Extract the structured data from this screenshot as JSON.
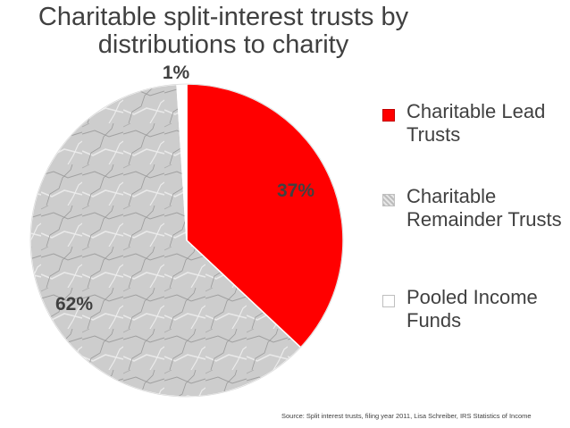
{
  "chart_data": {
    "type": "pie",
    "title": "Charitable split-interest trusts by distributions to charity",
    "categories": [
      "Charitable Lead Trusts",
      "Charitable Remainder Trusts",
      "Pooled Income Funds"
    ],
    "values": [
      37,
      62,
      1
    ],
    "data_labels": [
      "37%",
      "62%",
      "1%"
    ],
    "colors": [
      "#ff0000",
      "#c8c8c8",
      "#ffffff"
    ],
    "legend_placement": "right",
    "source": "Source: Split interest trusts, filing year 2011, Lisa Schreiber, IRS Statistics of Income"
  }
}
